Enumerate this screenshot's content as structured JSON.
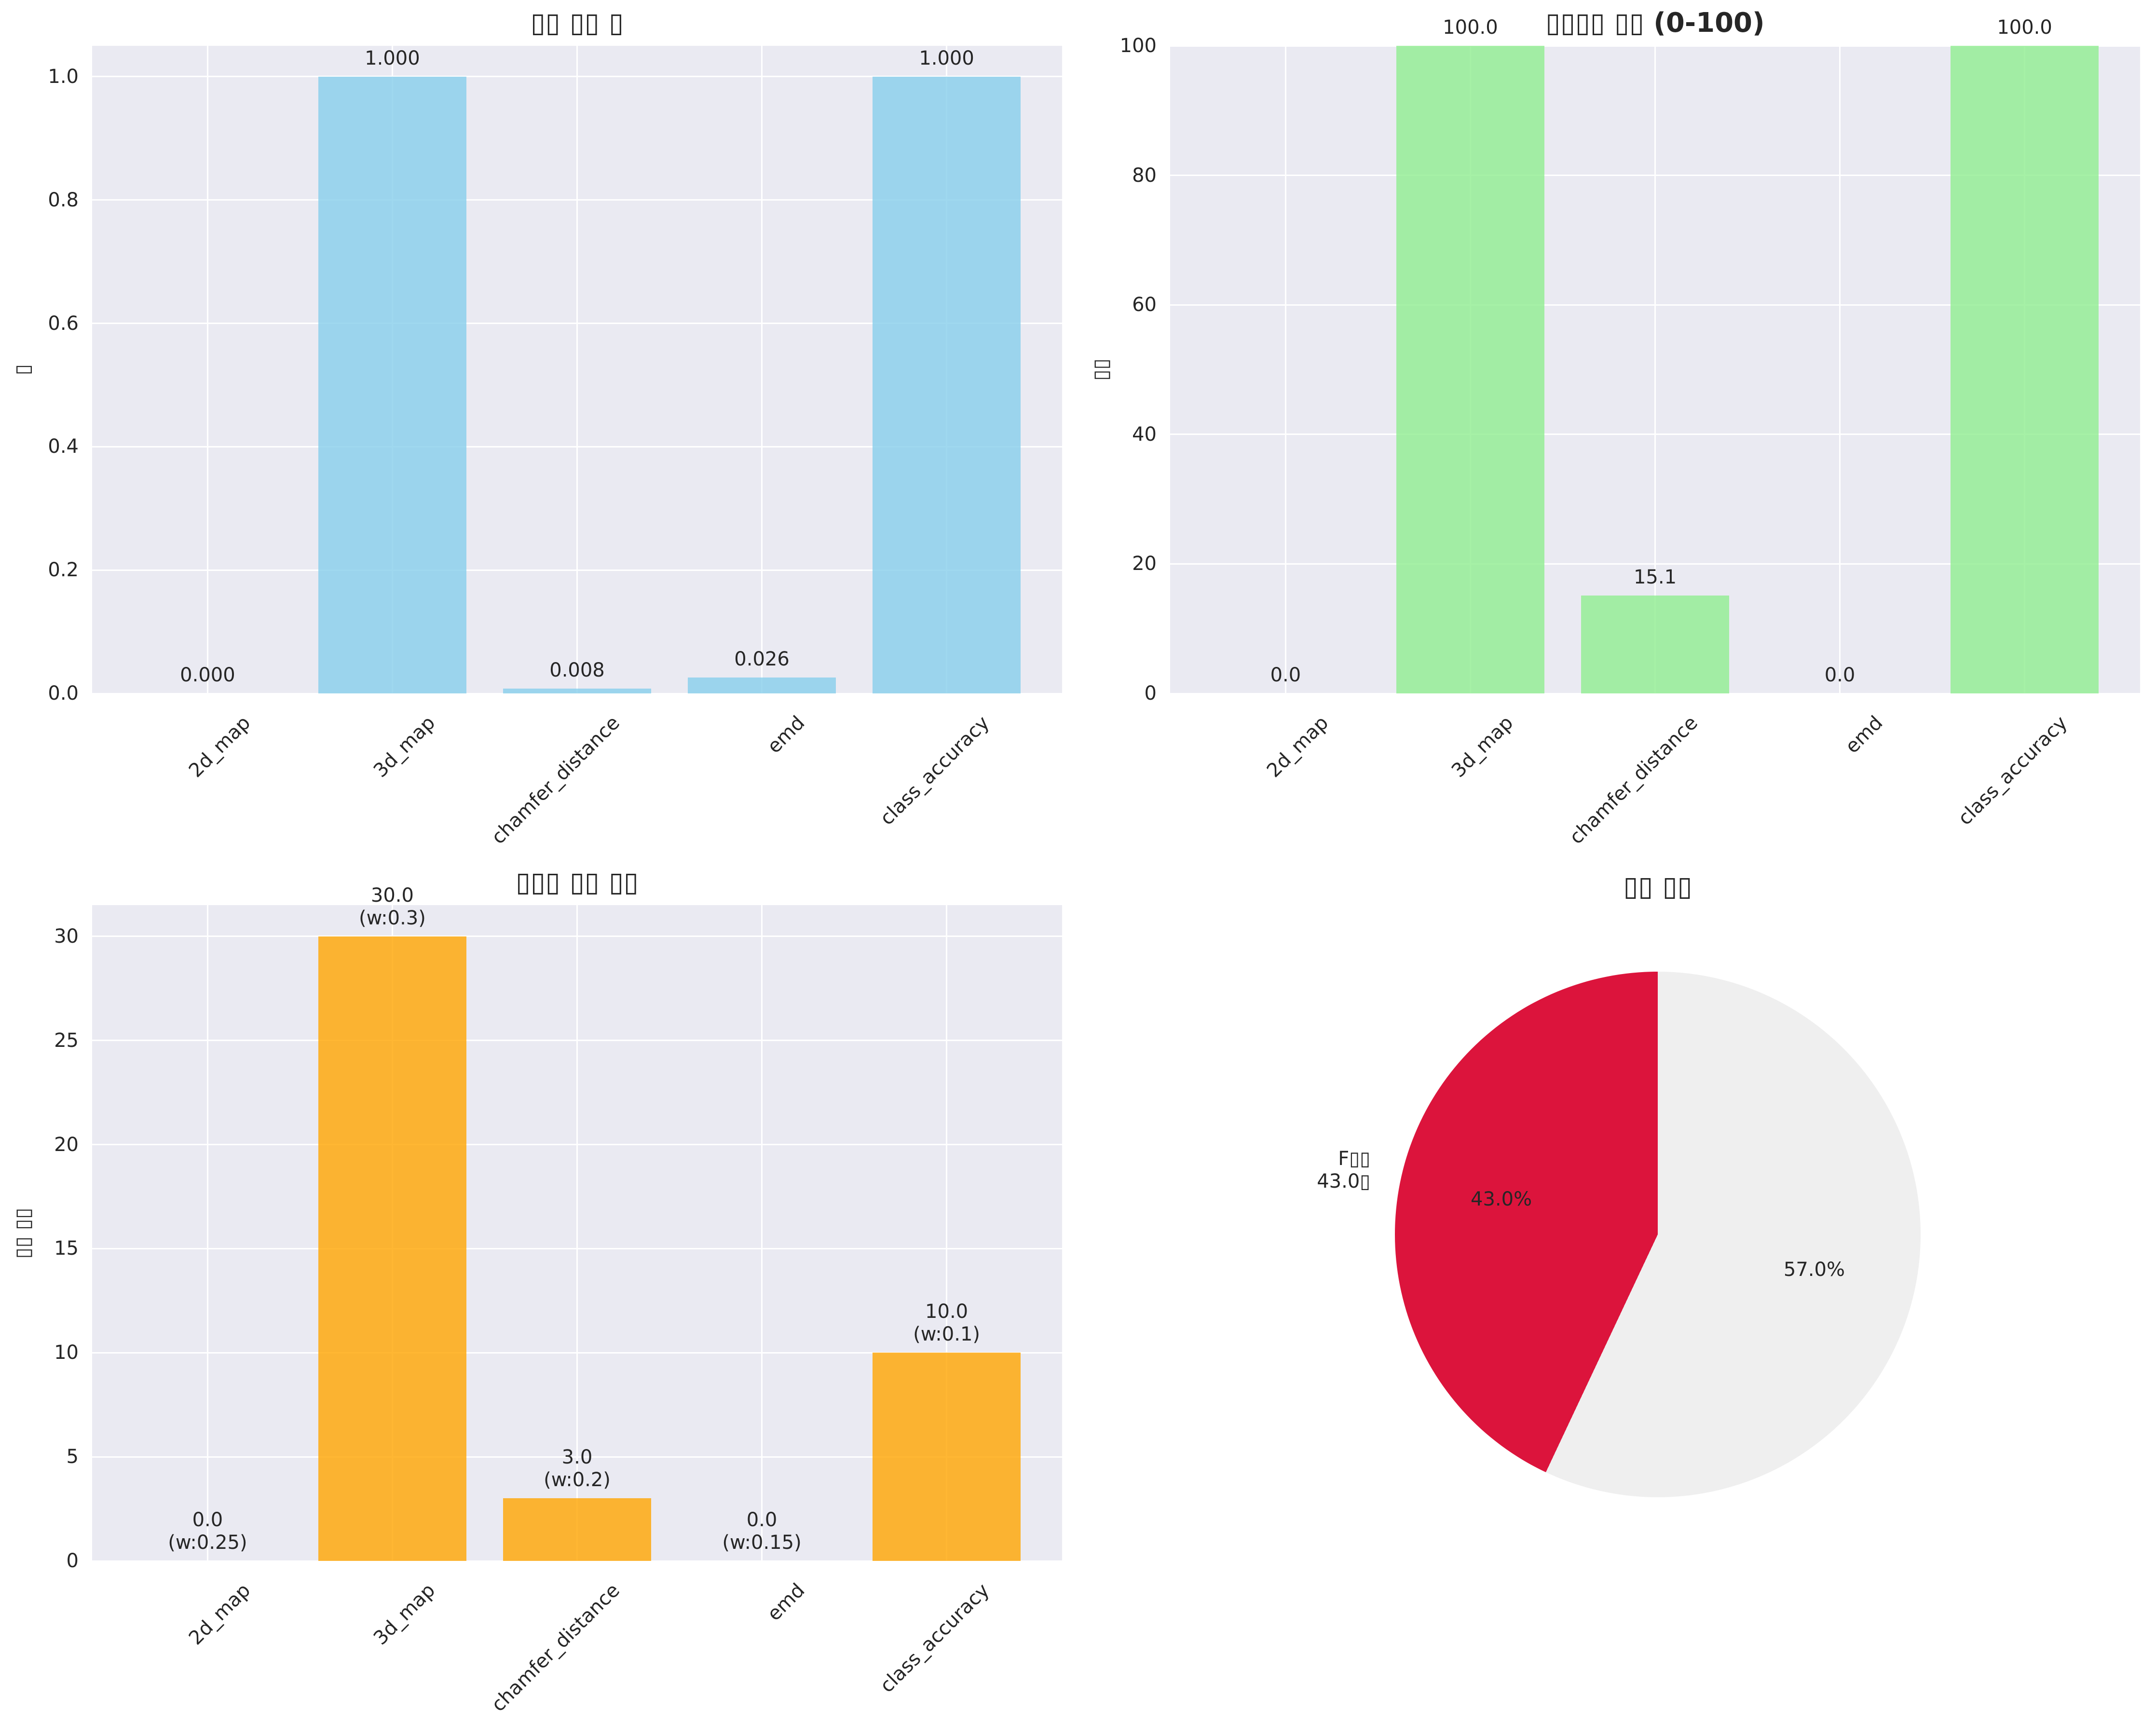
{
  "colors": {
    "figure_bg": "#ffffff",
    "plot_bg": "#eaeaf2",
    "grid": "#ffffff",
    "text": "#262626",
    "bar_blue": "rgba(135,206,235,0.8)",
    "bar_green": "rgba(144,238,144,0.8)",
    "bar_orange": "rgba(255,165,0,0.8)",
    "pie_red": "#dc143c",
    "pie_gray": "#efefef"
  },
  "chart_data": [
    {
      "type": "bar",
      "title": "▯▯ ▯▯ ▯",
      "ylabel": "▯",
      "categories": [
        "2d_map",
        "3d_map",
        "chamfer_distance",
        "emd",
        "class_accuracy"
      ],
      "values": [
        0.0,
        1.0,
        0.008,
        0.026,
        1.0
      ],
      "bar_labels": [
        [
          "0.000"
        ],
        [
          "1.000"
        ],
        [
          "0.008"
        ],
        [
          "0.026"
        ],
        [
          "1.000"
        ]
      ],
      "bar_color": "rgba(135,206,235,0.8)",
      "ylim": [
        0,
        1.05
      ],
      "ytick_values": [
        0,
        0.2,
        0.4,
        0.6,
        0.8,
        1.0
      ],
      "ytick_labels": [
        "0.0",
        "0.2",
        "0.4",
        "0.6",
        "0.8",
        "1.0"
      ],
      "grid": true,
      "legend": "none"
    },
    {
      "type": "bar",
      "title": "▯▯▯▯ ▯▯ (0-100)",
      "ylabel": "▯▯",
      "categories": [
        "2d_map",
        "3d_map",
        "chamfer_distance",
        "emd",
        "class_accuracy"
      ],
      "values": [
        0.0,
        100.0,
        15.1,
        0.0,
        100.0
      ],
      "bar_labels": [
        [
          "0.0"
        ],
        [
          "100.0"
        ],
        [
          "15.1"
        ],
        [
          "0.0"
        ],
        [
          "100.0"
        ]
      ],
      "bar_color": "rgba(144,238,144,0.8)",
      "ylim": [
        0,
        100
      ],
      "ytick_values": [
        0,
        20,
        40,
        60,
        80,
        100
      ],
      "ytick_labels": [
        "0",
        "20",
        "40",
        "60",
        "80",
        "100"
      ],
      "grid": true,
      "legend": "none"
    },
    {
      "type": "bar",
      "title": "▯▯▯ ▯▯ ▯▯",
      "ylabel": "▯▯ ▯▯",
      "categories": [
        "2d_map",
        "3d_map",
        "chamfer_distance",
        "emd",
        "class_accuracy"
      ],
      "values": [
        0.0,
        30.0,
        3.0,
        0.0,
        10.0
      ],
      "bar_labels": [
        [
          "0.0",
          "(w:0.25)"
        ],
        [
          "30.0",
          "(w:0.3)"
        ],
        [
          "3.0",
          "(w:0.2)"
        ],
        [
          "0.0",
          "(w:0.15)"
        ],
        [
          "10.0",
          "(w:0.1)"
        ]
      ],
      "bar_color": "rgba(255,165,0,0.8)",
      "ylim": [
        0,
        31.5
      ],
      "ytick_values": [
        0,
        5,
        10,
        15,
        20,
        25,
        30
      ],
      "ytick_labels": [
        "0",
        "5",
        "10",
        "15",
        "20",
        "25",
        "30"
      ],
      "grid": true,
      "legend": "none"
    },
    {
      "type": "pie",
      "title": "▯▯ ▯▯",
      "start_angle": 90,
      "counterclock": true,
      "slices": [
        {
          "name": "F-grade",
          "pct": 43.0,
          "color": "#dc143c",
          "pct_label": "43.0%",
          "outside_label": [
            "F▯▯",
            "43.0▯"
          ]
        },
        {
          "name": "remainder",
          "pct": 57.0,
          "color": "#efefef",
          "pct_label": "57.0%",
          "outside_label": []
        }
      ]
    }
  ]
}
